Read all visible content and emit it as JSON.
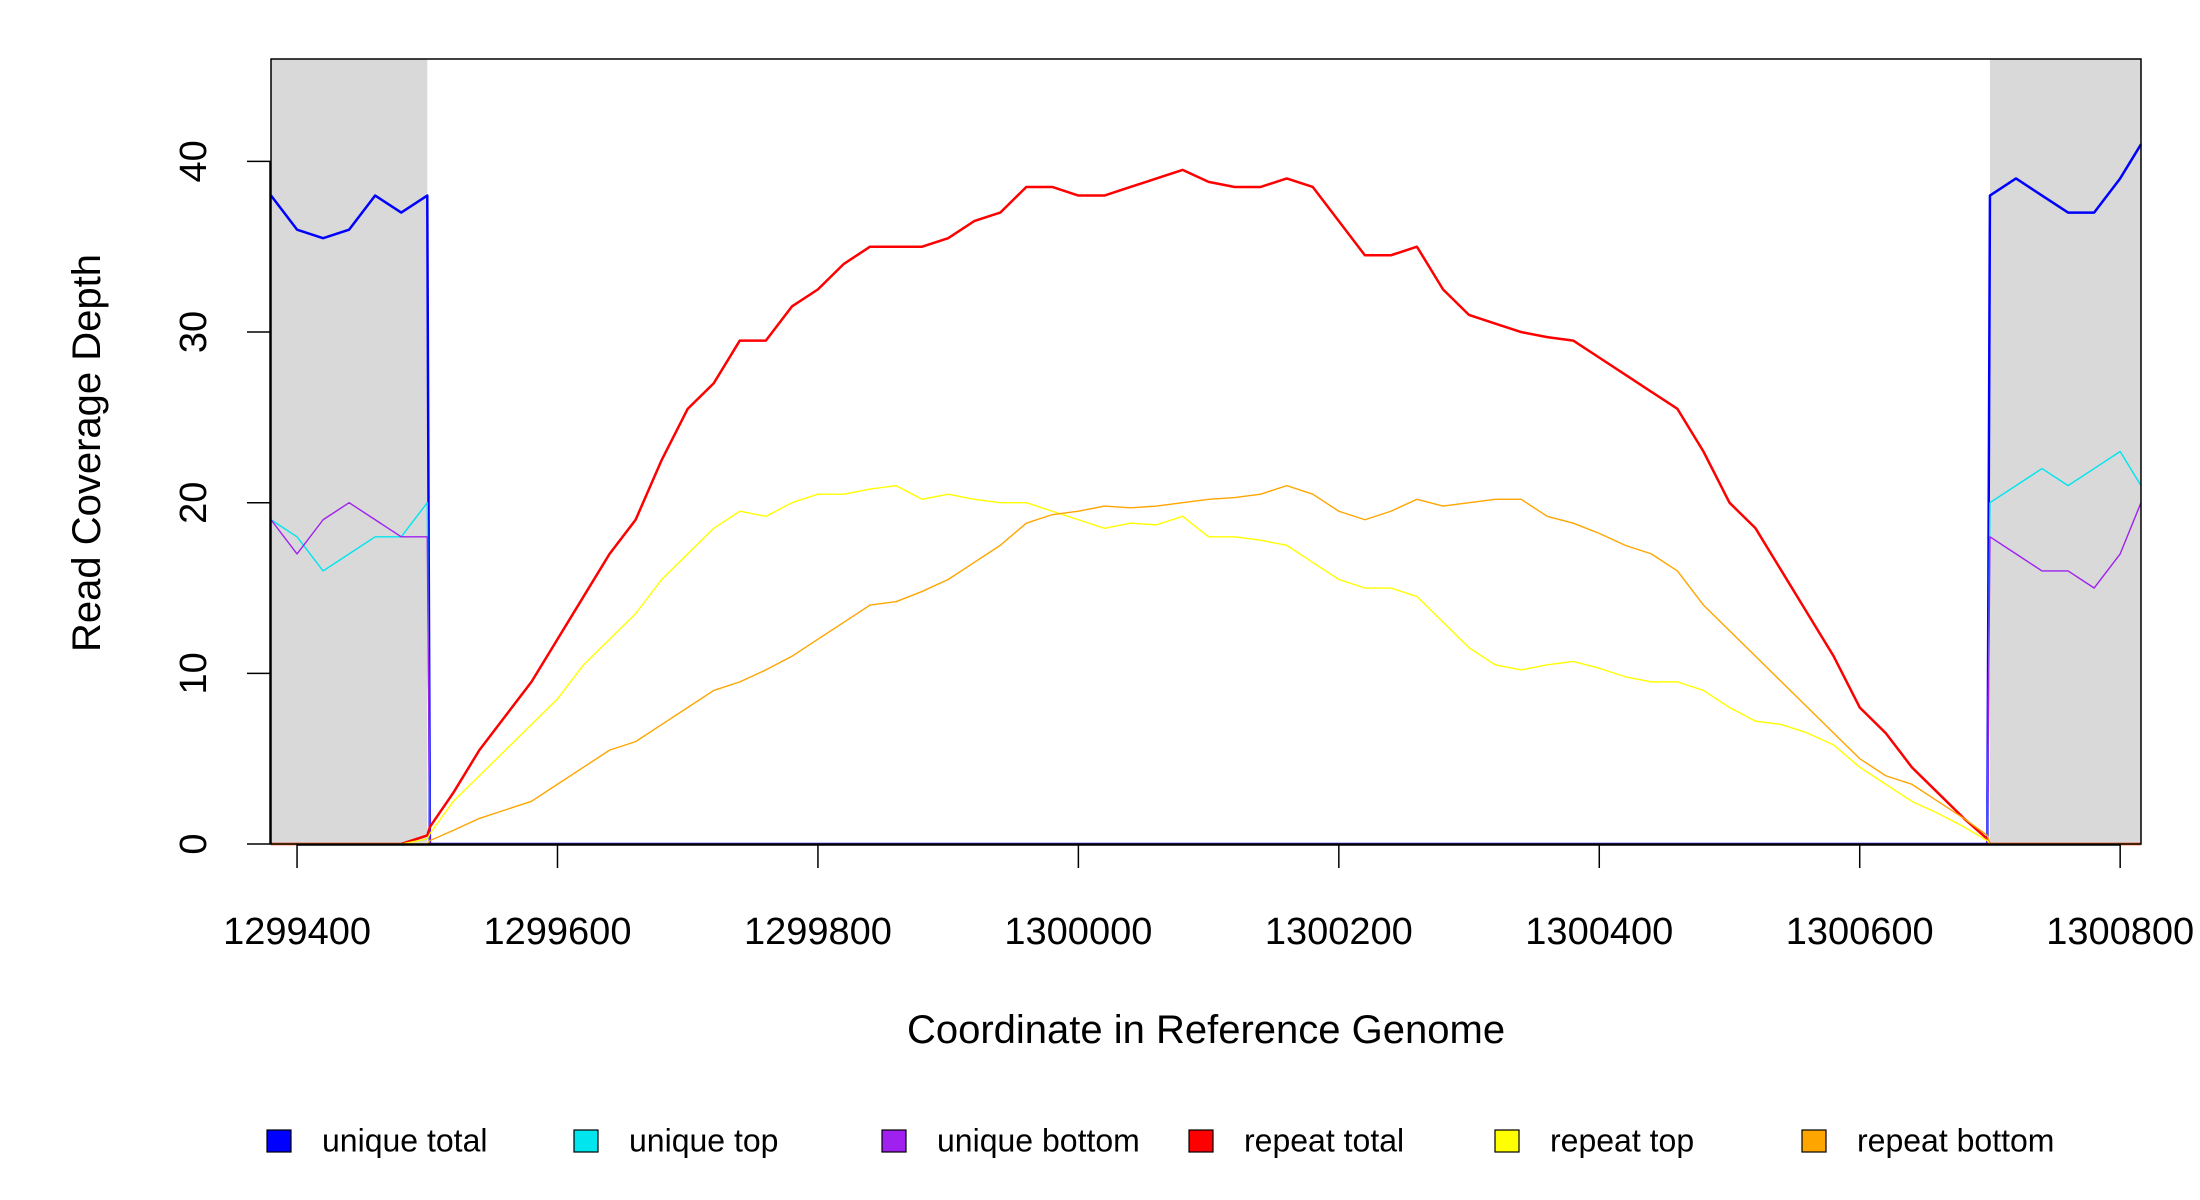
{
  "chart_data": {
    "type": "line",
    "x_label": "Coordinate in Reference Genome",
    "y_label": "Read Coverage Depth",
    "xlim": [
      1299380,
      1300816
    ],
    "ylim": [
      0,
      46
    ],
    "xticks": [
      1299400,
      1299600,
      1299800,
      1300000,
      1300200,
      1300400,
      1300600,
      1300800
    ],
    "yticks": [
      0,
      10,
      20,
      30,
      40
    ],
    "shaded_regions": [
      [
        1299380,
        1299500
      ],
      [
        1300700,
        1300816
      ]
    ],
    "shade_color": "#d9d9d9",
    "x": [
      1299380,
      1299400,
      1299420,
      1299440,
      1299460,
      1299480,
      1299500,
      1299502,
      1299520,
      1299540,
      1299560,
      1299580,
      1299600,
      1299620,
      1299640,
      1299660,
      1299680,
      1299700,
      1299720,
      1299740,
      1299760,
      1299780,
      1299800,
      1299820,
      1299840,
      1299860,
      1299880,
      1299900,
      1299920,
      1299940,
      1299960,
      1299980,
      1300000,
      1300020,
      1300040,
      1300060,
      1300080,
      1300100,
      1300120,
      1300140,
      1300160,
      1300180,
      1300200,
      1300220,
      1300240,
      1300260,
      1300280,
      1300300,
      1300320,
      1300340,
      1300360,
      1300380,
      1300400,
      1300420,
      1300440,
      1300460,
      1300480,
      1300500,
      1300520,
      1300540,
      1300560,
      1300580,
      1300600,
      1300620,
      1300640,
      1300660,
      1300680,
      1300698,
      1300700,
      1300720,
      1300740,
      1300760,
      1300780,
      1300800,
      1300816
    ],
    "series": [
      {
        "name": "unique total",
        "color": "#0000ff",
        "width": 2.5,
        "values": [
          38,
          36,
          35.5,
          36,
          38,
          37,
          38,
          0,
          0,
          0,
          0,
          0,
          0,
          0,
          0,
          0,
          0,
          0,
          0,
          0,
          0,
          0,
          0,
          0,
          0,
          0,
          0,
          0,
          0,
          0,
          0,
          0,
          0,
          0,
          0,
          0,
          0,
          0,
          0,
          0,
          0,
          0,
          0,
          0,
          0,
          0,
          0,
          0,
          0,
          0,
          0,
          0,
          0,
          0,
          0,
          0,
          0,
          0,
          0,
          0,
          0,
          0,
          0,
          0,
          0,
          0,
          0,
          0,
          38,
          39,
          38,
          37,
          37,
          39,
          41
        ]
      },
      {
        "name": "unique top",
        "color": "#00e5ee",
        "width": 1.4,
        "values": [
          19,
          18,
          16,
          17,
          18,
          18,
          20,
          0,
          0,
          0,
          0,
          0,
          0,
          0,
          0,
          0,
          0,
          0,
          0,
          0,
          0,
          0,
          0,
          0,
          0,
          0,
          0,
          0,
          0,
          0,
          0,
          0,
          0,
          0,
          0,
          0,
          0,
          0,
          0,
          0,
          0,
          0,
          0,
          0,
          0,
          0,
          0,
          0,
          0,
          0,
          0,
          0,
          0,
          0,
          0,
          0,
          0,
          0,
          0,
          0,
          0,
          0,
          0,
          0,
          0,
          0,
          0,
          0,
          20,
          21,
          22,
          21,
          22,
          23,
          21
        ]
      },
      {
        "name": "unique bottom",
        "color": "#a020f0",
        "width": 1.4,
        "values": [
          19,
          17,
          19,
          20,
          19,
          18,
          18,
          0,
          0,
          0,
          0,
          0,
          0,
          0,
          0,
          0,
          0,
          0,
          0,
          0,
          0,
          0,
          0,
          0,
          0,
          0,
          0,
          0,
          0,
          0,
          0,
          0,
          0,
          0,
          0,
          0,
          0,
          0,
          0,
          0,
          0,
          0,
          0,
          0,
          0,
          0,
          0,
          0,
          0,
          0,
          0,
          0,
          0,
          0,
          0,
          0,
          0,
          0,
          0,
          0,
          0,
          0,
          0,
          0,
          0,
          0,
          0,
          0,
          18,
          17,
          16,
          16,
          15,
          17,
          20
        ]
      },
      {
        "name": "repeat total",
        "color": "#ff0000",
        "width": 2.5,
        "values": [
          0,
          0,
          0,
          0,
          0,
          0,
          0.5,
          1,
          3,
          5.5,
          7.5,
          9.5,
          12,
          14.5,
          17,
          19,
          22.5,
          25.5,
          27,
          29.5,
          29.5,
          31.5,
          32.5,
          34,
          35,
          35,
          35,
          35.5,
          36.5,
          37,
          38.5,
          38.5,
          38,
          38,
          38.5,
          39,
          39.5,
          38.8,
          38.5,
          38.5,
          39,
          38.5,
          36.5,
          34.5,
          34.5,
          35,
          32.5,
          31,
          30.5,
          30,
          29.7,
          29.5,
          28.5,
          27.5,
          26.5,
          25.5,
          23,
          20,
          18.5,
          16,
          13.5,
          11,
          8,
          6.5,
          4.5,
          3,
          1.5,
          0.3,
          0,
          0,
          0,
          0,
          0,
          0,
          0
        ]
      },
      {
        "name": "repeat top",
        "color": "#ffff00",
        "width": 1.4,
        "values": [
          0,
          0,
          0,
          0,
          0,
          0,
          0.3,
          0.6,
          2.5,
          4,
          5.5,
          7,
          8.5,
          10.5,
          12,
          13.5,
          15.5,
          17,
          18.5,
          19.5,
          19.2,
          20,
          20.5,
          20.5,
          20.8,
          21,
          20.2,
          20.5,
          20.2,
          20,
          20,
          19.5,
          19,
          18.5,
          18.8,
          18.7,
          19.2,
          18,
          18,
          17.8,
          17.5,
          16.5,
          15.5,
          15,
          15,
          14.5,
          13,
          11.5,
          10.5,
          10.2,
          10.5,
          10.7,
          10.3,
          9.8,
          9.5,
          9.5,
          9,
          8,
          7.2,
          7,
          6.5,
          5.8,
          4.5,
          3.5,
          2.5,
          1.8,
          1,
          0.2,
          0,
          0,
          0,
          0,
          0,
          0,
          0
        ]
      },
      {
        "name": "repeat bottom",
        "color": "#ffa500",
        "width": 1.4,
        "values": [
          0,
          0,
          0,
          0,
          0,
          0,
          0,
          0.2,
          0.8,
          1.5,
          2,
          2.5,
          3.5,
          4.5,
          5.5,
          6,
          7,
          8,
          9,
          9.5,
          10.2,
          11,
          12,
          13,
          14,
          14.2,
          14.8,
          15.5,
          16.5,
          17.5,
          18.8,
          19.3,
          19.5,
          19.8,
          19.7,
          19.8,
          20,
          20.2,
          20.3,
          20.5,
          21,
          20.5,
          19.5,
          19,
          19.5,
          20.2,
          19.8,
          20,
          20.2,
          20.2,
          19.2,
          18.8,
          18.2,
          17.5,
          17,
          16,
          14,
          12.5,
          11,
          9.5,
          8,
          6.5,
          5,
          4,
          3.5,
          2.5,
          1.5,
          0.5,
          0,
          0,
          0,
          0,
          0,
          0,
          0
        ]
      }
    ]
  }
}
